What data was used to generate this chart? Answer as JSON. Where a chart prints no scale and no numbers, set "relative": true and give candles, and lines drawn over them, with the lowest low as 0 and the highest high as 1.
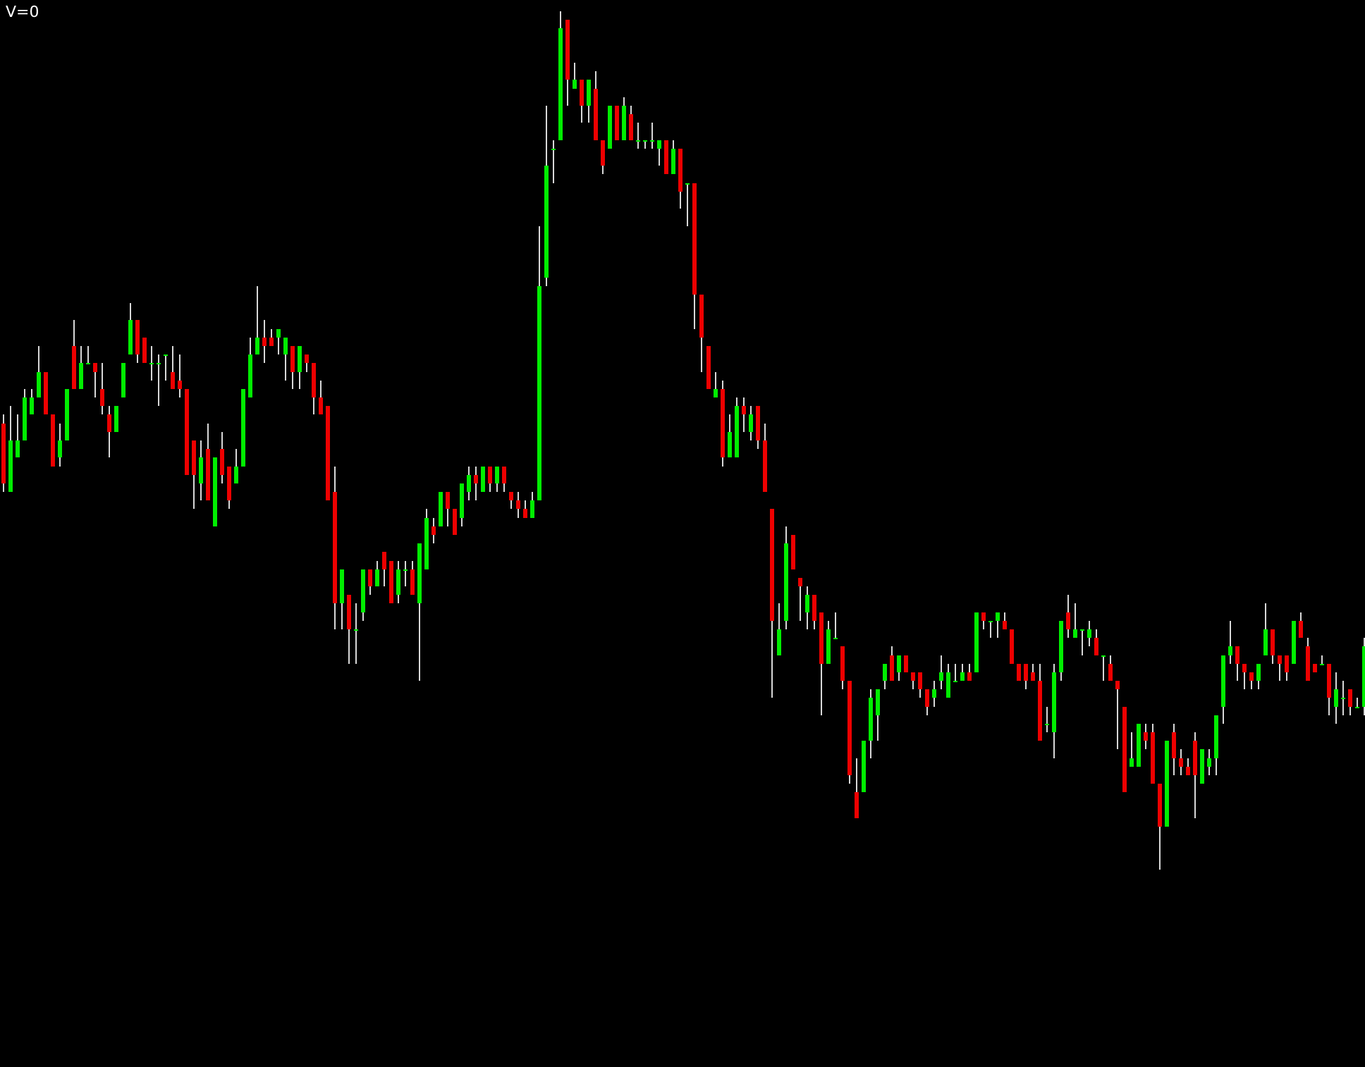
{
  "chart_data": {
    "type": "candlestick",
    "relative": true,
    "annotations": [
      "V=0"
    ],
    "categories": [
      null,
      null,
      null,
      null,
      null,
      null,
      null,
      null,
      null,
      null,
      null,
      null,
      null,
      null,
      null,
      null,
      null,
      null,
      null,
      null,
      null,
      null,
      null,
      null,
      null,
      null,
      null,
      null,
      null,
      null,
      null,
      null,
      null,
      null,
      null,
      null,
      null,
      null,
      null,
      null,
      null,
      null,
      null,
      null,
      null,
      null,
      null,
      null,
      null,
      null,
      null,
      null,
      null,
      null,
      null,
      null,
      null,
      null,
      null,
      null,
      null,
      null,
      null,
      null,
      null,
      null,
      null,
      null,
      null,
      null,
      null,
      null,
      null,
      null,
      null,
      null,
      null,
      null,
      null,
      null,
      null,
      null,
      null,
      null,
      null,
      null,
      null,
      null,
      null,
      null,
      null,
      null,
      null,
      null,
      null,
      null,
      null,
      null,
      null,
      null,
      null,
      null,
      null,
      null,
      null,
      null,
      null,
      null,
      null,
      null,
      null,
      null,
      null,
      null,
      null,
      null,
      null,
      null,
      null,
      null,
      null,
      null,
      null,
      null,
      null,
      null,
      null,
      null,
      null,
      null,
      null,
      null,
      null,
      null,
      null,
      null,
      null,
      null,
      null,
      null,
      null,
      null,
      null,
      null,
      null,
      null,
      null,
      null,
      null,
      null,
      null,
      null,
      null,
      null,
      null,
      null,
      null,
      null,
      null,
      null,
      null,
      null,
      null,
      null,
      null,
      null,
      null,
      null,
      null,
      null,
      null,
      null,
      null,
      null,
      null,
      null,
      null,
      null,
      null,
      null,
      null,
      null,
      null,
      null,
      null,
      null,
      null,
      null,
      null,
      null,
      null,
      null,
      null,
      null
    ],
    "ohlc": [
      [
        0.52,
        0.53,
        0.44,
        0.45
      ],
      [
        0.44,
        0.54,
        0.44,
        0.5
      ],
      [
        0.48,
        0.53,
        0.48,
        0.5
      ],
      [
        0.5,
        0.56,
        0.5,
        0.55
      ],
      [
        0.53,
        0.56,
        0.53,
        0.55
      ],
      [
        0.55,
        0.61,
        0.55,
        0.58
      ],
      [
        0.58,
        0.58,
        0.53,
        0.53
      ],
      [
        0.53,
        0.53,
        0.47,
        0.47
      ],
      [
        0.48,
        0.52,
        0.47,
        0.5
      ],
      [
        0.5,
        0.56,
        0.5,
        0.56
      ],
      [
        0.61,
        0.64,
        0.56,
        0.56
      ],
      [
        0.56,
        0.61,
        0.56,
        0.59
      ],
      [
        0.59,
        0.61,
        0.59,
        0.59
      ],
      [
        0.59,
        0.59,
        0.55,
        0.58
      ],
      [
        0.56,
        0.59,
        0.53,
        0.54
      ],
      [
        0.53,
        0.54,
        0.48,
        0.51
      ],
      [
        0.51,
        0.54,
        0.51,
        0.54
      ],
      [
        0.55,
        0.59,
        0.55,
        0.59
      ],
      [
        0.6,
        0.66,
        0.6,
        0.64
      ],
      [
        0.64,
        0.64,
        0.59,
        0.6
      ],
      [
        0.62,
        0.62,
        0.59,
        0.59
      ],
      [
        0.59,
        0.61,
        0.57,
        0.59
      ],
      [
        0.59,
        0.6,
        0.54,
        0.59
      ],
      [
        0.6,
        0.6,
        0.57,
        0.6
      ],
      [
        0.58,
        0.61,
        0.56,
        0.56
      ],
      [
        0.57,
        0.6,
        0.55,
        0.56
      ],
      [
        0.56,
        0.56,
        0.46,
        0.46
      ],
      [
        0.5,
        0.5,
        0.42,
        0.46
      ],
      [
        0.45,
        0.5,
        0.43,
        0.48
      ],
      [
        0.49,
        0.52,
        0.43,
        0.43
      ],
      [
        0.4,
        0.48,
        0.4,
        0.48
      ],
      [
        0.49,
        0.51,
        0.45,
        0.46
      ],
      [
        0.47,
        0.47,
        0.42,
        0.43
      ],
      [
        0.45,
        0.49,
        0.45,
        0.47
      ],
      [
        0.47,
        0.56,
        0.47,
        0.56
      ],
      [
        0.55,
        0.62,
        0.55,
        0.6
      ],
      [
        0.6,
        0.68,
        0.6,
        0.62
      ],
      [
        0.62,
        0.64,
        0.59,
        0.61
      ],
      [
        0.62,
        0.63,
        0.61,
        0.61
      ],
      [
        0.62,
        0.63,
        0.6,
        0.63
      ],
      [
        0.6,
        0.62,
        0.57,
        0.62
      ],
      [
        0.61,
        0.61,
        0.56,
        0.58
      ],
      [
        0.58,
        0.61,
        0.56,
        0.61
      ],
      [
        0.6,
        0.6,
        0.58,
        0.59
      ],
      [
        0.59,
        0.59,
        0.53,
        0.55
      ],
      [
        0.55,
        0.57,
        0.53,
        0.53
      ],
      [
        0.54,
        0.54,
        0.43,
        0.43
      ],
      [
        0.44,
        0.47,
        0.28,
        0.31
      ],
      [
        0.31,
        0.35,
        0.28,
        0.35
      ],
      [
        0.32,
        0.32,
        0.24,
        0.28
      ],
      [
        0.28,
        0.31,
        0.24,
        0.28
      ],
      [
        0.3,
        0.35,
        0.29,
        0.35
      ],
      [
        0.35,
        0.35,
        0.32,
        0.33
      ],
      [
        0.33,
        0.36,
        0.33,
        0.35
      ],
      [
        0.37,
        0.37,
        0.33,
        0.35
      ],
      [
        0.36,
        0.36,
        0.31,
        0.31
      ],
      [
        0.32,
        0.36,
        0.31,
        0.35
      ],
      [
        0.35,
        0.36,
        0.33,
        0.35
      ],
      [
        0.35,
        0.36,
        0.32,
        0.32
      ],
      [
        0.31,
        0.38,
        0.22,
        0.38
      ],
      [
        0.35,
        0.42,
        0.35,
        0.41
      ],
      [
        0.4,
        0.41,
        0.38,
        0.39
      ],
      [
        0.4,
        0.44,
        0.4,
        0.44
      ],
      [
        0.44,
        0.44,
        0.4,
        0.42
      ],
      [
        0.42,
        0.42,
        0.39,
        0.39
      ],
      [
        0.41,
        0.45,
        0.4,
        0.45
      ],
      [
        0.44,
        0.47,
        0.43,
        0.46
      ],
      [
        0.46,
        0.47,
        0.43,
        0.45
      ],
      [
        0.44,
        0.47,
        0.44,
        0.47
      ],
      [
        0.47,
        0.47,
        0.44,
        0.45
      ],
      [
        0.45,
        0.47,
        0.44,
        0.47
      ],
      [
        0.47,
        0.47,
        0.44,
        0.45
      ],
      [
        0.44,
        0.44,
        0.42,
        0.43
      ],
      [
        0.43,
        0.44,
        0.41,
        0.42
      ],
      [
        0.42,
        0.43,
        0.41,
        0.41
      ],
      [
        0.41,
        0.44,
        0.41,
        0.43
      ],
      [
        0.43,
        0.75,
        0.43,
        0.68
      ],
      [
        0.69,
        0.89,
        0.68,
        0.82
      ],
      [
        0.84,
        0.85,
        0.8,
        0.84
      ],
      [
        0.85,
        1,
        0.85,
        0.98
      ],
      [
        0.99,
        0.99,
        0.89,
        0.92
      ],
      [
        0.91,
        0.94,
        0.91,
        0.92
      ],
      [
        0.92,
        0.92,
        0.87,
        0.89
      ],
      [
        0.89,
        0.92,
        0.87,
        0.92
      ],
      [
        0.91,
        0.93,
        0.85,
        0.85
      ],
      [
        0.85,
        0.85,
        0.81,
        0.82
      ],
      [
        0.84,
        0.89,
        0.84,
        0.89
      ],
      [
        0.89,
        0.89,
        0.85,
        0.85
      ],
      [
        0.85,
        0.9,
        0.85,
        0.89
      ],
      [
        0.88,
        0.89,
        0.85,
        0.85
      ],
      [
        0.85,
        0.87,
        0.84,
        0.85
      ],
      [
        0.85,
        0.85,
        0.84,
        0.85
      ],
      [
        0.85,
        0.87,
        0.84,
        0.85
      ],
      [
        0.84,
        0.85,
        0.82,
        0.85
      ],
      [
        0.85,
        0.85,
        0.81,
        0.81
      ],
      [
        0.81,
        0.85,
        0.81,
        0.84
      ],
      [
        0.84,
        0.84,
        0.77,
        0.79
      ],
      [
        0.8,
        0.8,
        0.75,
        0.8
      ],
      [
        0.8,
        0.8,
        0.63,
        0.67
      ],
      [
        0.67,
        0.67,
        0.58,
        0.62
      ],
      [
        0.61,
        0.61,
        0.56,
        0.56
      ],
      [
        0.55,
        0.58,
        0.55,
        0.56
      ],
      [
        0.56,
        0.57,
        0.47,
        0.48
      ],
      [
        0.48,
        0.53,
        0.48,
        0.51
      ],
      [
        0.48,
        0.55,
        0.48,
        0.54
      ],
      [
        0.54,
        0.55,
        0.51,
        0.53
      ],
      [
        0.51,
        0.54,
        0.5,
        0.53
      ],
      [
        0.54,
        0.54,
        0.49,
        0.5
      ],
      [
        0.5,
        0.52,
        0.44,
        0.44
      ],
      [
        0.42,
        0.42,
        0.2,
        0.29
      ],
      [
        0.25,
        0.31,
        0.25,
        0.28
      ],
      [
        0.29,
        0.4,
        0.28,
        0.38
      ],
      [
        0.39,
        0.39,
        0.35,
        0.35
      ],
      [
        0.34,
        0.34,
        0.29,
        0.33
      ],
      [
        0.3,
        0.33,
        0.28,
        0.32
      ],
      [
        0.32,
        0.32,
        0.28,
        0.29
      ],
      [
        0.3,
        0.3,
        0.18,
        0.24
      ],
      [
        0.24,
        0.29,
        0.24,
        0.28
      ],
      [
        0.27,
        0.3,
        0.27,
        0.27
      ],
      [
        0.26,
        0.26,
        0.21,
        0.22
      ],
      [
        0.22,
        0.22,
        0.1,
        0.11
      ],
      [
        0.09,
        0.13,
        0.06,
        0.06
      ],
      [
        0.09,
        0.15,
        0.09,
        0.15
      ],
      [
        0.15,
        0.21,
        0.13,
        0.2
      ],
      [
        0.18,
        0.21,
        0.15,
        0.21
      ],
      [
        0.22,
        0.24,
        0.21,
        0.24
      ],
      [
        0.25,
        0.26,
        0.22,
        0.22
      ],
      [
        0.23,
        0.25,
        0.22,
        0.25
      ],
      [
        0.25,
        0.25,
        0.23,
        0.23
      ],
      [
        0.23,
        0.23,
        0.21,
        0.22
      ],
      [
        0.23,
        0.23,
        0.2,
        0.21
      ],
      [
        0.21,
        0.21,
        0.18,
        0.19
      ],
      [
        0.2,
        0.22,
        0.19,
        0.21
      ],
      [
        0.22,
        0.25,
        0.21,
        0.23
      ],
      [
        0.2,
        0.24,
        0.2,
        0.23
      ],
      [
        0.22,
        0.24,
        0.22,
        0.22
      ],
      [
        0.22,
        0.24,
        0.22,
        0.23
      ],
      [
        0.23,
        0.24,
        0.22,
        0.22
      ],
      [
        0.23,
        0.3,
        0.23,
        0.3
      ],
      [
        0.3,
        0.3,
        0.28,
        0.29
      ],
      [
        0.29,
        0.29,
        0.27,
        0.29
      ],
      [
        0.29,
        0.3,
        0.27,
        0.3
      ],
      [
        0.29,
        0.3,
        0.28,
        0.28
      ],
      [
        0.28,
        0.28,
        0.24,
        0.24
      ],
      [
        0.24,
        0.24,
        0.22,
        0.22
      ],
      [
        0.24,
        0.24,
        0.21,
        0.22
      ],
      [
        0.23,
        0.24,
        0.22,
        0.22
      ],
      [
        0.22,
        0.24,
        0.15,
        0.15
      ],
      [
        0.17,
        0.19,
        0.16,
        0.17
      ],
      [
        0.16,
        0.24,
        0.13,
        0.23
      ],
      [
        0.23,
        0.29,
        0.22,
        0.29
      ],
      [
        0.3,
        0.32,
        0.27,
        0.28
      ],
      [
        0.27,
        0.31,
        0.27,
        0.28
      ],
      [
        0.28,
        0.28,
        0.25,
        0.28
      ],
      [
        0.27,
        0.29,
        0.26,
        0.28
      ],
      [
        0.27,
        0.28,
        0.25,
        0.25
      ],
      [
        0.25,
        0.25,
        0.22,
        0.25
      ],
      [
        0.24,
        0.25,
        0.22,
        0.22
      ],
      [
        0.22,
        0.22,
        0.14,
        0.21
      ],
      [
        0.19,
        0.19,
        0.09,
        0.09
      ],
      [
        0.12,
        0.16,
        0.12,
        0.13
      ],
      [
        0.12,
        0.17,
        0.12,
        0.17
      ],
      [
        0.16,
        0.17,
        0.14,
        0.15
      ],
      [
        0.16,
        0.17,
        0.1,
        0.1
      ],
      [
        0.1,
        0.1,
        0,
        0.05
      ],
      [
        0.05,
        0.15,
        0.05,
        0.15
      ],
      [
        0.16,
        0.17,
        0.11,
        0.13
      ],
      [
        0.13,
        0.14,
        0.11,
        0.12
      ],
      [
        0.12,
        0.13,
        0.11,
        0.11
      ],
      [
        0.15,
        0.16,
        0.06,
        0.11
      ],
      [
        0.1,
        0.14,
        0.1,
        0.14
      ],
      [
        0.12,
        0.14,
        0.11,
        0.13
      ],
      [
        0.13,
        0.18,
        0.11,
        0.18
      ],
      [
        0.19,
        0.25,
        0.17,
        0.25
      ],
      [
        0.25,
        0.29,
        0.24,
        0.26
      ],
      [
        0.26,
        0.26,
        0.22,
        0.24
      ],
      [
        0.24,
        0.24,
        0.21,
        0.23
      ],
      [
        0.23,
        0.23,
        0.21,
        0.22
      ],
      [
        0.22,
        0.24,
        0.21,
        0.24
      ],
      [
        0.25,
        0.31,
        0.25,
        0.28
      ],
      [
        0.28,
        0.28,
        0.24,
        0.25
      ],
      [
        0.25,
        0.25,
        0.22,
        0.24
      ],
      [
        0.25,
        0.25,
        0.22,
        0.23
      ],
      [
        0.24,
        0.29,
        0.24,
        0.29
      ],
      [
        0.29,
        0.3,
        0.27,
        0.27
      ],
      [
        0.26,
        0.27,
        0.22,
        0.22
      ],
      [
        0.24,
        0.24,
        0.23,
        0.23
      ],
      [
        0.24,
        0.25,
        0.24,
        0.24
      ],
      [
        0.24,
        0.24,
        0.18,
        0.2
      ],
      [
        0.19,
        0.23,
        0.17,
        0.21
      ],
      [
        0.2,
        0.22,
        0.18,
        0.2
      ],
      [
        0.21,
        0.21,
        0.18,
        0.19
      ],
      [
        0.19,
        0.2,
        0.19,
        0.19
      ],
      [
        0.19,
        0.27,
        0.18,
        0.26
      ]
    ]
  }
}
